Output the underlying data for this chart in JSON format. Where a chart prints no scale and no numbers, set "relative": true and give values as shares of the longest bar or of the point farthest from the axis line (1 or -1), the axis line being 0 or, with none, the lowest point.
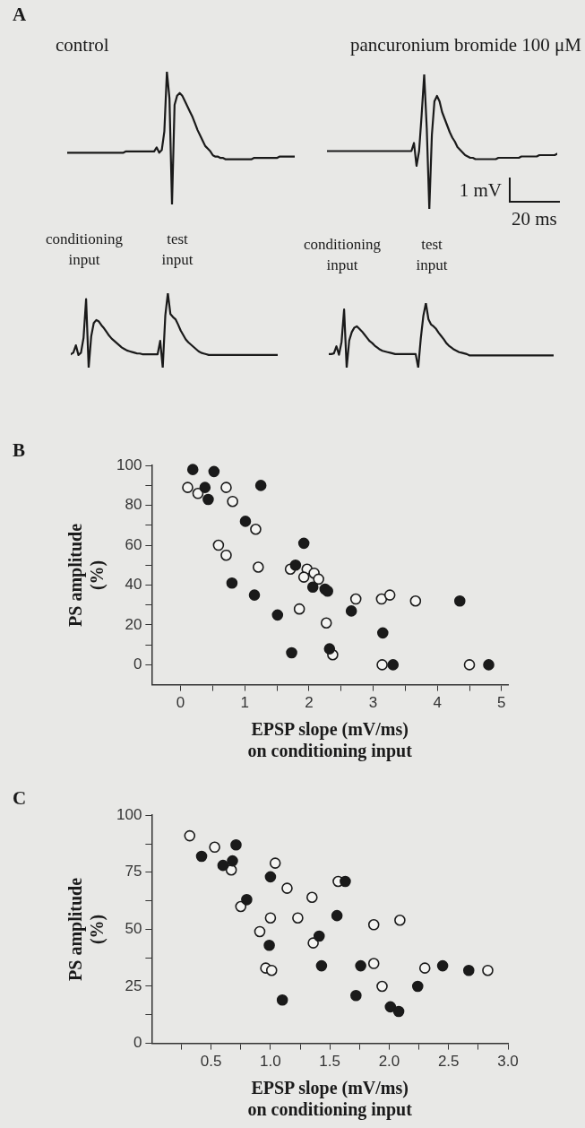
{
  "chart_data": [
    {
      "type": "line",
      "title": "control",
      "annotations": [
        "A"
      ],
      "relative": true,
      "tick_labels": false,
      "marker": "none",
      "line_style": "solid",
      "color": "#1a1a1a",
      "categories": [
        null,
        null,
        null,
        null,
        null,
        null,
        null,
        null,
        null,
        null,
        null,
        null,
        null,
        null,
        null,
        null,
        null,
        null,
        null,
        null,
        null,
        null,
        null,
        null,
        null,
        null,
        null,
        null,
        null,
        null,
        null,
        null,
        null,
        null,
        null,
        null,
        null,
        null,
        null,
        null,
        null,
        null,
        null,
        null,
        null,
        null,
        null,
        null,
        null,
        null,
        null,
        null,
        null,
        null,
        null,
        null,
        null,
        null,
        null,
        null,
        null,
        null,
        null,
        null,
        null,
        null,
        null,
        null,
        null,
        null,
        null,
        null,
        null,
        null,
        null,
        null,
        null,
        null,
        null,
        null,
        null,
        null,
        null,
        null,
        null,
        null,
        null,
        null,
        null,
        null
      ],
      "values": [
        0.39,
        0.39,
        0.39,
        0.39,
        0.39,
        0.39,
        0.39,
        0.39,
        0.39,
        0.39,
        0.39,
        0.39,
        0.39,
        0.39,
        0.39,
        0.39,
        0.39,
        0.39,
        0.39,
        0.39,
        0.39,
        0.39,
        0.39,
        0.4,
        0.4,
        0.4,
        0.4,
        0.4,
        0.4,
        0.4,
        0.4,
        0.4,
        0.4,
        0.4,
        0.4,
        0.43,
        0.39,
        0.41,
        0.55,
        1,
        0.8,
        0,
        0.75,
        0.82,
        0.84,
        0.82,
        0.78,
        0.74,
        0.7,
        0.66,
        0.61,
        0.56,
        0.52,
        0.48,
        0.44,
        0.42,
        0.4,
        0.37,
        0.36,
        0.36,
        0.35,
        0.35,
        0.34,
        0.34,
        0.34,
        0.34,
        0.34,
        0.34,
        0.34,
        0.34,
        0.34,
        0.34,
        0.34,
        0.35,
        0.35,
        0.35,
        0.35,
        0.35,
        0.35,
        0.35,
        0.35,
        0.35,
        0.35,
        0.36,
        0.36,
        0.36,
        0.36,
        0.36,
        0.36,
        0.36
      ]
    },
    {
      "type": "line",
      "title": "pancuronium bromide 100 μM",
      "annotations": [
        "1 mV",
        "20 ms"
      ],
      "relative": true,
      "tick_labels": false,
      "marker": "none",
      "line_style": "solid",
      "color": "#1a1a1a",
      "categories": [
        null,
        null,
        null,
        null,
        null,
        null,
        null,
        null,
        null,
        null,
        null,
        null,
        null,
        null,
        null,
        null,
        null,
        null,
        null,
        null,
        null,
        null,
        null,
        null,
        null,
        null,
        null,
        null,
        null,
        null,
        null,
        null,
        null,
        null,
        null,
        null,
        null,
        null,
        null,
        null,
        null,
        null,
        null,
        null,
        null,
        null,
        null,
        null,
        null,
        null,
        null,
        null,
        null,
        null,
        null,
        null,
        null,
        null,
        null,
        null,
        null,
        null,
        null,
        null,
        null,
        null,
        null,
        null,
        null,
        null,
        null,
        null,
        null,
        null,
        null,
        null,
        null,
        null,
        null,
        null,
        null,
        null,
        null,
        null,
        null,
        null,
        null,
        null,
        null,
        null,
        null
      ],
      "values": [
        0.43,
        0.43,
        0.43,
        0.43,
        0.43,
        0.43,
        0.43,
        0.43,
        0.43,
        0.43,
        0.43,
        0.43,
        0.43,
        0.43,
        0.43,
        0.43,
        0.43,
        0.43,
        0.43,
        0.43,
        0.43,
        0.43,
        0.43,
        0.43,
        0.43,
        0.43,
        0.43,
        0.43,
        0.43,
        0.43,
        0.43,
        0.43,
        0.43,
        0.43,
        0.49,
        0.32,
        0.43,
        0.7,
        1,
        0.6,
        0,
        0.55,
        0.8,
        0.84,
        0.8,
        0.72,
        0.67,
        0.62,
        0.57,
        0.53,
        0.5,
        0.46,
        0.44,
        0.42,
        0.4,
        0.39,
        0.38,
        0.38,
        0.37,
        0.37,
        0.37,
        0.37,
        0.37,
        0.37,
        0.37,
        0.37,
        0.37,
        0.38,
        0.38,
        0.38,
        0.38,
        0.38,
        0.38,
        0.38,
        0.38,
        0.38,
        0.39,
        0.39,
        0.39,
        0.39,
        0.39,
        0.39,
        0.39,
        0.4,
        0.4,
        0.4,
        0.4,
        0.4,
        0.4,
        0.4,
        0.41
      ]
    },
    {
      "type": "line",
      "annotations": [
        "conditioning input",
        "test input"
      ],
      "relative": true,
      "tick_labels": false,
      "marker": "none",
      "line_style": "solid",
      "color": "#1a1a1a",
      "categories": [
        null,
        null,
        null,
        null,
        null,
        null,
        null,
        null,
        null,
        null,
        null,
        null,
        null,
        null,
        null,
        null,
        null,
        null,
        null,
        null,
        null,
        null,
        null,
        null,
        null,
        null,
        null,
        null,
        null,
        null,
        null,
        null,
        null,
        null,
        null,
        null,
        null,
        null,
        null,
        null,
        null,
        null,
        null,
        null,
        null,
        null,
        null,
        null,
        null,
        null,
        null,
        null,
        null,
        null,
        null,
        null,
        null,
        null,
        null,
        null,
        null,
        null,
        null,
        null,
        null,
        null,
        null,
        null,
        null,
        null,
        null,
        null,
        null,
        null,
        null,
        null,
        null,
        null,
        null,
        null,
        null,
        null
      ],
      "values": [
        0.18,
        0.2,
        0.3,
        0.17,
        0.2,
        0.4,
        0.92,
        0,
        0.42,
        0.6,
        0.64,
        0.62,
        0.57,
        0.53,
        0.48,
        0.43,
        0.39,
        0.36,
        0.33,
        0.3,
        0.27,
        0.25,
        0.23,
        0.22,
        0.21,
        0.2,
        0.19,
        0.19,
        0.18,
        0.18,
        0.18,
        0.18,
        0.18,
        0.18,
        0.18,
        0.36,
        0,
        0.7,
        1,
        0.72,
        0.68,
        0.65,
        0.58,
        0.5,
        0.44,
        0.38,
        0.34,
        0.31,
        0.28,
        0.25,
        0.22,
        0.2,
        0.19,
        0.18,
        0.17,
        0.17,
        0.17,
        0.17,
        0.17,
        0.17,
        0.17,
        0.17,
        0.17,
        0.17,
        0.17,
        0.17,
        0.17,
        0.17,
        0.17,
        0.17,
        0.17,
        0.17,
        0.17,
        0.17,
        0.17,
        0.17,
        0.17,
        0.17,
        0.17,
        0.17,
        0.17,
        0.17
      ]
    },
    {
      "type": "line",
      "annotations": [
        "conditioning input",
        "test input"
      ],
      "relative": true,
      "tick_labels": false,
      "marker": "none",
      "line_style": "solid",
      "color": "#1a1a1a",
      "categories": [
        null,
        null,
        null,
        null,
        null,
        null,
        null,
        null,
        null,
        null,
        null,
        null,
        null,
        null,
        null,
        null,
        null,
        null,
        null,
        null,
        null,
        null,
        null,
        null,
        null,
        null,
        null,
        null,
        null,
        null,
        null,
        null,
        null,
        null,
        null,
        null,
        null,
        null,
        null,
        null,
        null,
        null,
        null,
        null,
        null,
        null,
        null,
        null,
        null,
        null,
        null,
        null,
        null,
        null,
        null,
        null,
        null,
        null,
        null,
        null,
        null,
        null,
        null,
        null,
        null,
        null,
        null,
        null,
        null,
        null,
        null,
        null,
        null,
        null,
        null,
        null,
        null,
        null,
        null,
        null,
        null,
        null,
        null,
        null,
        null,
        null,
        null,
        null,
        null
      ],
      "values": [
        0.21,
        0.21,
        0.22,
        0.33,
        0.2,
        0.4,
        0.9,
        0,
        0.42,
        0.55,
        0.62,
        0.64,
        0.6,
        0.56,
        0.51,
        0.46,
        0.41,
        0.38,
        0.34,
        0.31,
        0.28,
        0.26,
        0.25,
        0.24,
        0.23,
        0.22,
        0.21,
        0.21,
        0.21,
        0.21,
        0.21,
        0.21,
        0.21,
        0.21,
        0.21,
        0,
        0.45,
        0.8,
        1,
        0.75,
        0.67,
        0.64,
        0.6,
        0.54,
        0.49,
        0.44,
        0.38,
        0.34,
        0.31,
        0.28,
        0.26,
        0.24,
        0.23,
        0.22,
        0.21,
        0.19,
        0.19,
        0.19,
        0.19,
        0.19,
        0.19,
        0.19,
        0.19,
        0.19,
        0.19,
        0.19,
        0.19,
        0.19,
        0.19,
        0.19,
        0.19,
        0.19,
        0.19,
        0.19,
        0.19,
        0.19,
        0.19,
        0.19,
        0.19,
        0.19,
        0.19,
        0.19,
        0.19,
        0.19,
        0.19,
        0.19,
        0.19,
        0.19,
        0.19
      ]
    },
    {
      "type": "scatter",
      "annotations": [
        "B"
      ],
      "xlabel": "EPSP slope (mV/ms) on conditioning input",
      "ylabel": "PS amplitude (%)",
      "marker": "circle",
      "xlim": [
        -0.45,
        5.1
      ],
      "xticks": [
        0,
        {
          "value": 0.5,
          "label": null
        },
        1,
        {
          "value": 1.5,
          "label": null
        },
        2,
        {
          "value": 2.5,
          "label": null
        },
        3,
        {
          "value": 3.5,
          "label": null
        },
        4,
        {
          "value": 4.5,
          "label": null
        },
        5
      ],
      "ylim": [
        -10,
        100
      ],
      "yticks": [
        0,
        {
          "value": 10,
          "label": null
        },
        20,
        {
          "value": 30,
          "label": null
        },
        40,
        {
          "value": 50,
          "label": null
        },
        60,
        {
          "value": 70,
          "label": null
        },
        80,
        {
          "value": 90,
          "label": null
        },
        100
      ],
      "series": [
        {
          "color": "#1a1a1a",
          "x": [
            0.19,
            0.52,
            0.38,
            0.43,
            1.25,
            1.01,
            1.92,
            0.8,
            1.15,
            1.79,
            2.06,
            2.25,
            2.29,
            1.51,
            1.73,
            2.32,
            2.66,
            3.15,
            3.31,
            4.35,
            4.8
          ],
          "values": [
            98,
            97,
            89,
            83,
            90,
            72,
            61,
            41,
            35,
            50,
            39,
            38,
            37,
            25,
            6,
            8,
            27,
            16,
            0,
            32,
            0
          ]
        },
        {
          "color": "#f4f4f2",
          "x": [
            0.11,
            0.27,
            0.71,
            0.81,
            1.17,
            0.59,
            0.71,
            1.21,
            1.71,
            1.97,
            1.92,
            2.08,
            2.15,
            1.85,
            2.27,
            2.37,
            2.73,
            3.13,
            3.26,
            3.66,
            3.14,
            4.5
          ],
          "values": [
            89,
            86,
            89,
            82,
            68,
            60,
            55,
            49,
            48,
            48,
            44,
            46,
            43,
            28,
            21,
            5,
            33,
            33,
            35,
            32,
            0,
            0
          ]
        }
      ]
    },
    {
      "type": "scatter",
      "annotations": [
        "C"
      ],
      "xlabel": "EPSP slope (mV/ms) on conditioning input",
      "ylabel": "PS amplitude (%)",
      "marker": "circle",
      "xlim": [
        0,
        3.0
      ],
      "xticks": [
        {
          "value": 0.25,
          "label": null
        },
        0.5,
        {
          "value": 0.75,
          "label": null
        },
        {
          "value": 1.0,
          "label": "1.0"
        },
        {
          "value": 1.25,
          "label": null
        },
        1.5,
        {
          "value": 1.75,
          "label": null
        },
        {
          "value": 2.0,
          "label": "2.0"
        },
        {
          "value": 2.25,
          "label": null
        },
        2.5,
        {
          "value": 2.75,
          "label": null
        },
        {
          "value": 3.0,
          "label": "3.0"
        }
      ],
      "ylim": [
        0,
        100
      ],
      "yticks": [
        0,
        {
          "value": 12.5,
          "label": null
        },
        25,
        {
          "value": 37.5,
          "label": null
        },
        50,
        {
          "value": 62.5,
          "label": null
        },
        75,
        {
          "value": 87.5,
          "label": null
        },
        100
      ],
      "series": [
        {
          "color": "#1a1a1a",
          "x": [
            0.42,
            0.6,
            0.68,
            0.71,
            0.8,
            1.0,
            0.99,
            1.1,
            1.41,
            1.43,
            1.56,
            1.63,
            1.76,
            1.72,
            2.01,
            2.08,
            2.24,
            2.45,
            2.67
          ],
          "values": [
            82,
            78,
            80,
            87,
            63,
            73,
            43,
            19,
            47,
            34,
            56,
            71,
            34,
            21,
            16,
            14,
            25,
            34,
            32
          ]
        },
        {
          "color": "#f4f4f2",
          "x": [
            0.32,
            0.53,
            0.67,
            0.75,
            1.04,
            0.91,
            1.0,
            0.96,
            1.01,
            1.14,
            1.23,
            1.35,
            1.36,
            1.57,
            1.87,
            1.87,
            1.94,
            2.09,
            2.3,
            2.83
          ],
          "values": [
            91,
            86,
            76,
            60,
            79,
            49,
            55,
            33,
            32,
            68,
            55,
            64,
            44,
            71,
            52,
            35,
            25,
            54,
            33,
            32
          ]
        }
      ]
    }
  ]
}
